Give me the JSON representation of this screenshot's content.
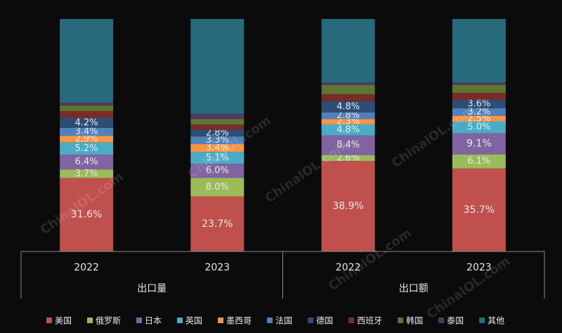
{
  "chart_data": {
    "type": "stacked-bar-100",
    "categories": [
      "2022",
      "2023",
      "2022",
      "2023"
    ],
    "groups": [
      "出口量",
      "出口额"
    ],
    "watermark": "ChinaIOL.com",
    "series": [
      {
        "name": "美国",
        "color": "#c0504d",
        "values": [
          31.6,
          23.7,
          38.9,
          35.7
        ],
        "value_labels": [
          "31.6%",
          "23.7%",
          "38.9%",
          "35.7%"
        ]
      },
      {
        "name": "俄罗斯",
        "color": "#9bbb59",
        "values": [
          3.7,
          8.0,
          2.6,
          6.1
        ],
        "value_labels": [
          "3.7%",
          "8.0%",
          "2.6%",
          "6.1%"
        ]
      },
      {
        "name": "日本",
        "color": "#8064a2",
        "values": [
          6.4,
          6.0,
          8.4,
          9.1
        ],
        "value_labels": [
          "6.4%",
          "6.0%",
          "8.4%",
          "9.1%"
        ]
      },
      {
        "name": "英国",
        "color": "#4bacc6",
        "values": [
          5.2,
          5.1,
          4.8,
          5.0
        ],
        "value_labels": [
          "5.2%",
          "5.1%",
          "4.8%",
          "5.0%"
        ]
      },
      {
        "name": "墨西哥",
        "color": "#f79646",
        "values": [
          2.9,
          3.4,
          2.3,
          2.5
        ],
        "value_labels": [
          "2.9%",
          "3.4%",
          "2.3%",
          "2.5%"
        ]
      },
      {
        "name": "法国",
        "color": "#4f81bd",
        "values": [
          3.4,
          3.3,
          2.8,
          3.2
        ],
        "value_labels": [
          "3.4%",
          "3.3%",
          "2.8%",
          "3.2%"
        ]
      },
      {
        "name": "德国",
        "color": "#2c4d75",
        "values": [
          4.2,
          2.8,
          4.8,
          3.6
        ],
        "value_labels": [
          "4.2%",
          "2.8%",
          "4.8%",
          "3.6%"
        ]
      },
      {
        "name": "西班牙",
        "color": "#772c2a",
        "values": [
          3.0,
          2.3,
          3.0,
          3.0
        ]
      },
      {
        "name": "韩国",
        "color": "#5f7530",
        "values": [
          2.4,
          2.4,
          4.0,
          3.5
        ]
      },
      {
        "name": "泰国",
        "color": "#4d3b62",
        "values": [
          1.2,
          2.2,
          1.0,
          1.0
        ]
      },
      {
        "name": "其他",
        "color": "#276a7c",
        "values": [
          36.0,
          40.8,
          27.4,
          27.3
        ]
      }
    ],
    "ylim": [
      0,
      100
    ]
  }
}
